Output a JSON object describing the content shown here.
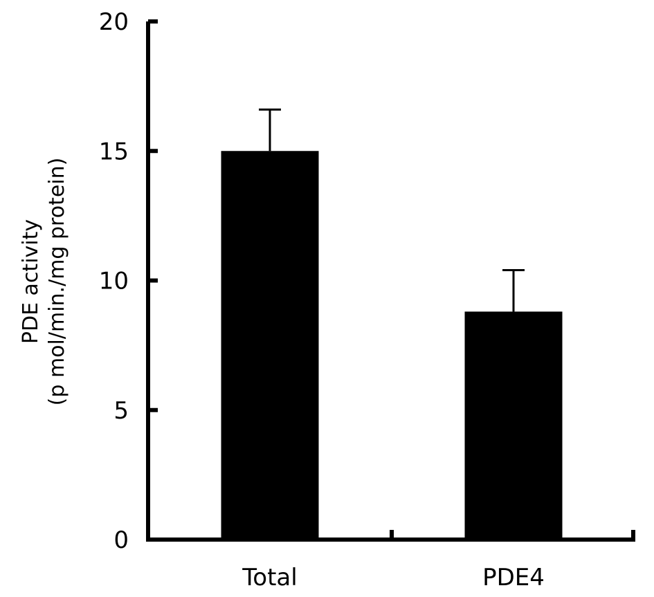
{
  "chart_data": {
    "type": "bar",
    "categories": [
      "Total",
      "PDE4"
    ],
    "values": [
      15.0,
      8.8
    ],
    "error": [
      1.6,
      1.6
    ],
    "ylabel": [
      "PDE activity",
      "(p mol/min./mg protein)"
    ],
    "xlabel": "",
    "title": "",
    "ylim": [
      0,
      20
    ],
    "yticks": [
      0,
      5,
      10,
      15,
      20
    ],
    "grid": false,
    "bar_color": "#000000",
    "axis_color": "#000000"
  }
}
